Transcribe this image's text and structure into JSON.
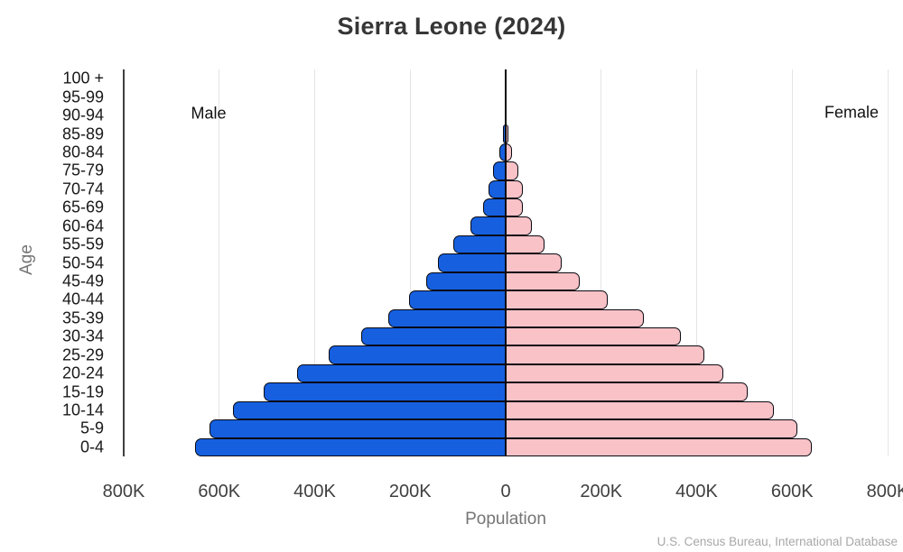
{
  "title": "Sierra Leone (2024)",
  "annotations": {
    "male_label": "Male",
    "female_label": "Female"
  },
  "axes": {
    "xlabel": "Population",
    "ylabel": "Age"
  },
  "source": "U.S. Census Bureau, International Database",
  "chart_data": {
    "type": "bar",
    "subtype": "population-pyramid",
    "title": "Sierra Leone (2024)",
    "xlabel": "Population",
    "ylabel": "Age",
    "unit": "persons, thousands",
    "age_groups_top_to_bottom": [
      "100 +",
      "95-99",
      "90-94",
      "85-89",
      "80-84",
      "75-79",
      "70-74",
      "65-69",
      "60-64",
      "55-59",
      "50-54",
      "45-49",
      "40-44",
      "35-39",
      "30-34",
      "25-29",
      "20-24",
      "15-19",
      "10-14",
      "5-9",
      "0-4"
    ],
    "series": [
      {
        "name": "Male",
        "color": "#1660e0",
        "values_thousands": [
          0.5,
          1,
          2.5,
          5,
          13,
          26,
          36,
          48,
          74,
          110,
          142,
          167,
          203,
          246,
          303,
          371,
          436,
          506,
          572,
          621,
          650
        ]
      },
      {
        "name": "Female",
        "color": "#f9c2c7",
        "values_thousands": [
          0.5,
          1,
          2.5,
          5,
          13,
          27,
          35,
          36,
          55,
          82,
          118,
          155,
          214,
          290,
          366,
          417,
          455,
          506,
          561,
          610,
          641
        ]
      }
    ],
    "x_axis": {
      "tick_labels": [
        "800K",
        "600K",
        "400K",
        "200K",
        "0",
        "200K",
        "400K",
        "600K",
        "800K"
      ],
      "tick_values_thousands": [
        -800,
        -600,
        -400,
        -200,
        0,
        200,
        400,
        600,
        800
      ],
      "xlim_thousands": [
        -800,
        800
      ]
    },
    "grid": true,
    "legend_position": "none",
    "bar_outline_color": "#0a0a12",
    "colors": {
      "male": "#1660e0",
      "female": "#f9c2c7",
      "gridline": "#e4e4e4",
      "center_axis": "#0a0a0a"
    }
  }
}
